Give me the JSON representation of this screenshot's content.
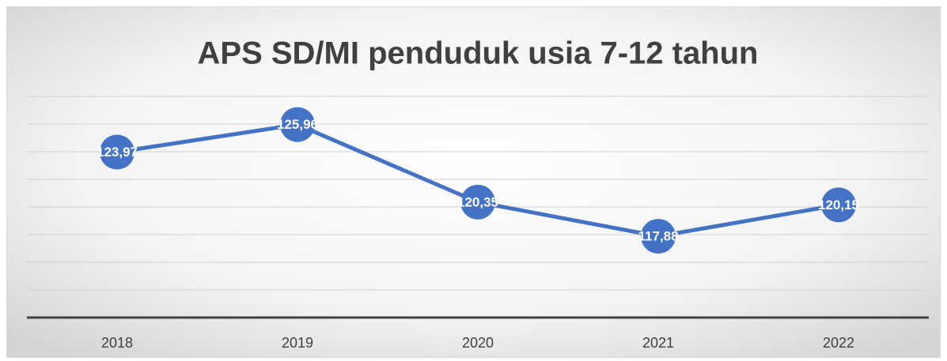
{
  "chart_data": {
    "type": "line",
    "title": "APS SD/MI penduduk usia 7-12 tahun",
    "categories": [
      "2018",
      "2019",
      "2020",
      "2021",
      "2022"
    ],
    "series": [
      {
        "name": "APS SD/MI",
        "color": "#4472c4",
        "values": [
          123.97,
          125.96,
          120.35,
          117.88,
          120.15
        ],
        "value_labels": [
          "123,97",
          "125,96",
          "120,35",
          "117,88",
          "120,15"
        ]
      }
    ],
    "ylim": [
      112,
      128
    ],
    "yticks": [
      112,
      114,
      116,
      118,
      120,
      122,
      124,
      126,
      128
    ],
    "grid": true
  }
}
